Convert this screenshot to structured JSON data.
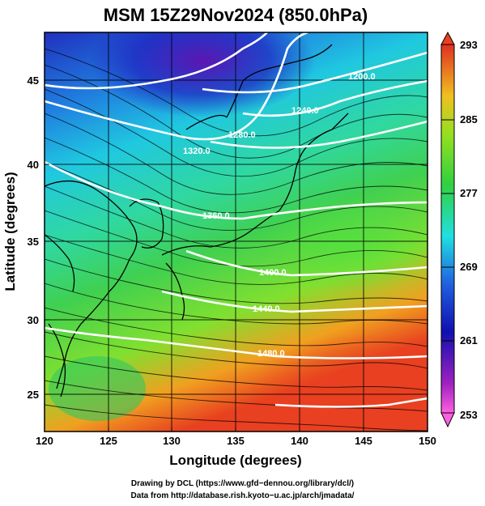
{
  "title": "MSM 15Z29Nov2024 (850.0hPa)",
  "map": {
    "x_axis_label": "Longitude (degrees)",
    "y_axis_label": "Latitude  (degrees)",
    "lon_range": [
      120,
      150
    ],
    "lat_range": [
      22.4,
      47.6
    ],
    "lon_ticks": [
      "120",
      "125",
      "130",
      "135",
      "140",
      "145",
      "150"
    ],
    "lat_ticks": [
      "25",
      "30",
      "35",
      "40",
      "45"
    ],
    "shaded_field_color_range": [
      253,
      293
    ],
    "colorbar_ticks": [
      "293",
      "285",
      "277",
      "269",
      "261",
      "253"
    ],
    "contour_labels": [
      "1200.0",
      "1240.0",
      "1280.0",
      "1320.0",
      "1360.0",
      "1400.0",
      "1440.0",
      "1480.0"
    ],
    "colors": {
      "warm": "#e8302a",
      "mid": "#40d040",
      "cool": "#20e0e0",
      "cold": "#2020c0",
      "contour": "#ffffff"
    },
    "overlays": [
      "streamlines",
      "coastlines",
      "height-contours",
      "lat-lon-grid"
    ]
  },
  "credits": {
    "line1": "Drawing by DCL (https://www.gfd−dennou.org/library/dcl/)",
    "line2": "Data from http://database.rish.kyoto−u.ac.jp/arch/jmadata/"
  }
}
